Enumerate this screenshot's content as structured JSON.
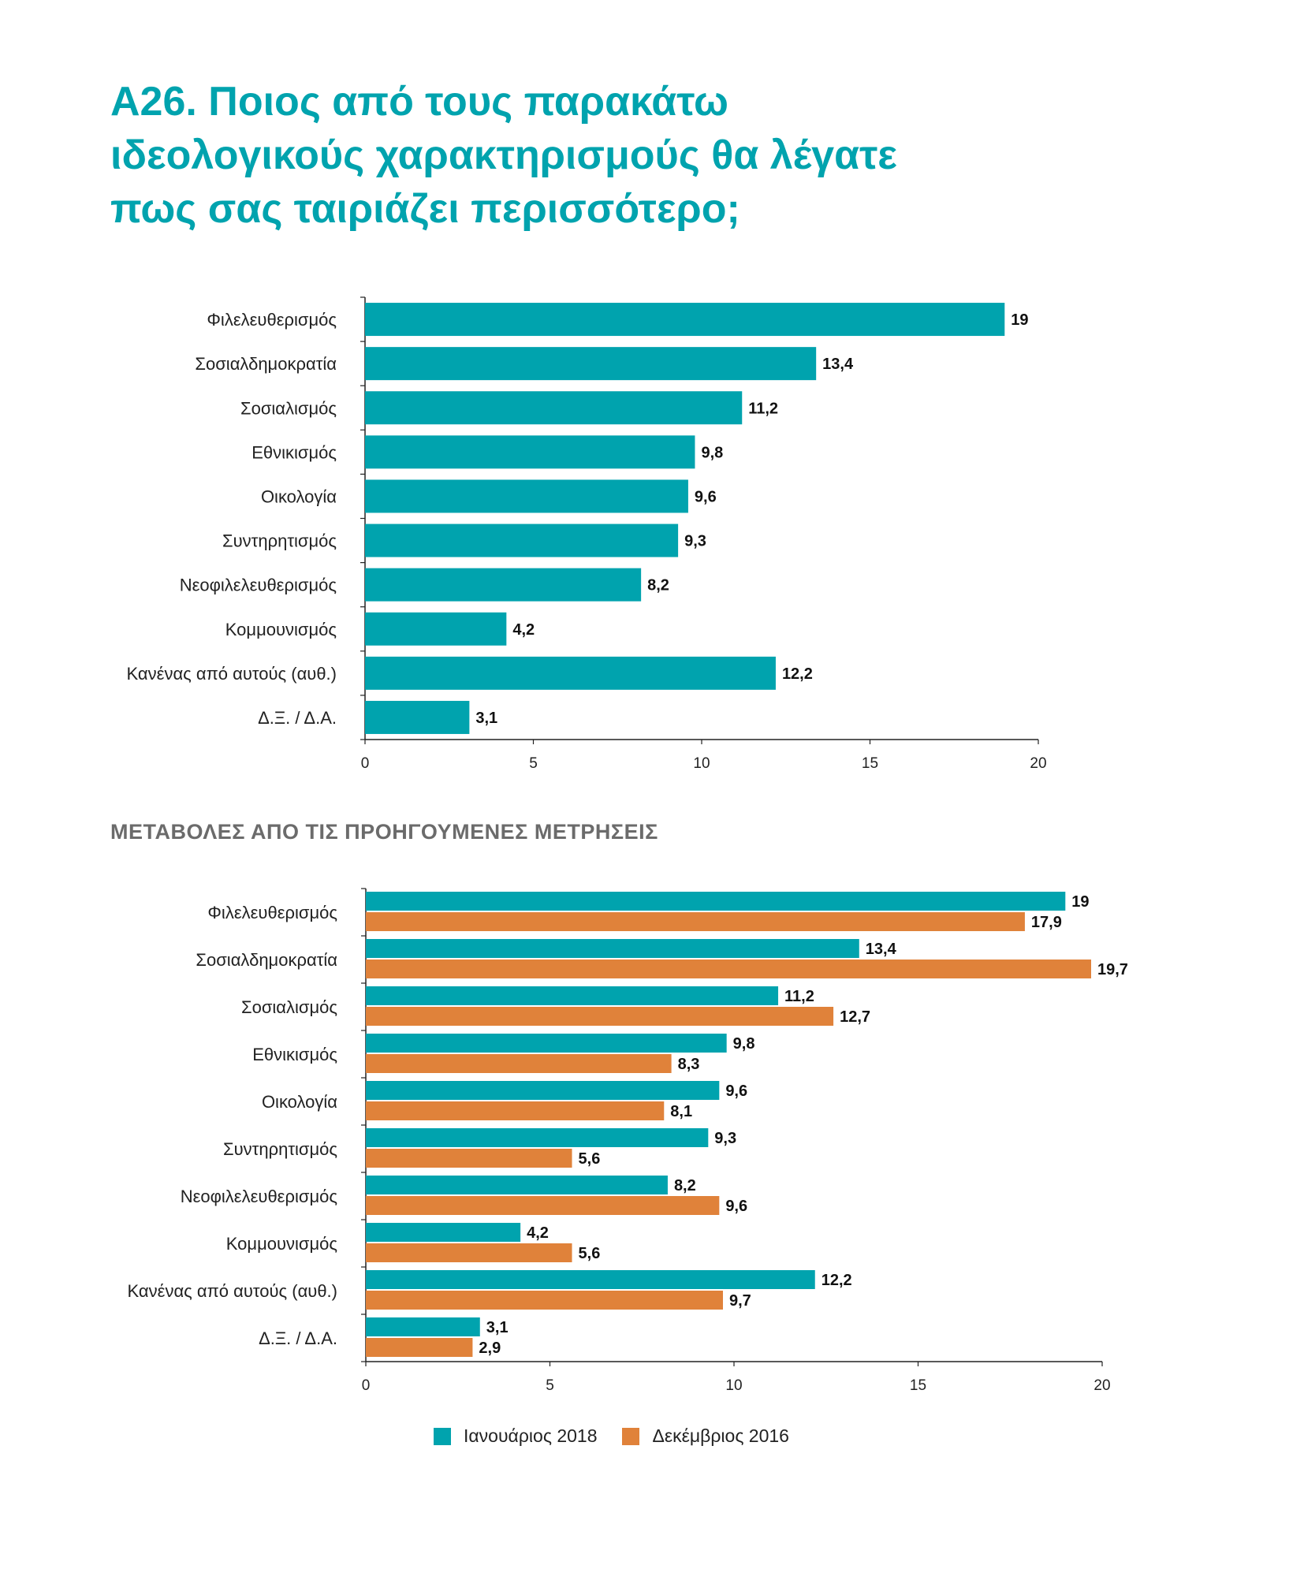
{
  "title_lines": [
    "Α26. Ποιος από τους παρακάτω",
    "ιδεολογικούς χαρακτηρισμούς θα λέγατε",
    "πως σας ταιριάζει περισσότερο;"
  ],
  "subtitle": "ΜΕΤΑΒΟΛΕΣ ΑΠΟ ΤΙΣ ΠΡΟΗΓΟΥΜΕΝΕΣ ΜΕΤΡΗΣΕΙΣ",
  "colors": {
    "teal": "#00A3AE",
    "orange": "#E0823A",
    "axis": "#222222"
  },
  "chart_data": [
    {
      "type": "bar",
      "orientation": "horizontal",
      "categories": [
        "Φιλελευθερισμός",
        "Σοσιαλδημοκρατία",
        "Σοσιαλισμός",
        "Εθνικισμός",
        "Οικολογία",
        "Συντηρητισμός",
        "Νεοφιλελευθερισμός",
        "Κομμουνισμός",
        "Κανένας από αυτούς (αυθ.)",
        "Δ.Ξ. / Δ.Α."
      ],
      "series": [
        {
          "values": [
            19,
            13.4,
            11.2,
            9.8,
            9.6,
            9.3,
            8.2,
            4.2,
            12.2,
            3.1
          ],
          "value_labels": [
            "19",
            "13,4",
            "11,2",
            "9,8",
            "9,6",
            "9,3",
            "8,2",
            "4,2",
            "12,2",
            "3,1"
          ]
        }
      ],
      "xlim": [
        0,
        20
      ],
      "xticks": [
        "0",
        "5",
        "10",
        "15",
        "20"
      ]
    },
    {
      "type": "bar",
      "orientation": "horizontal",
      "categories": [
        "Φιλελευθερισμός",
        "Σοσιαλδημοκρατία",
        "Σοσιαλισμός",
        "Εθνικισμός",
        "Οικολογία",
        "Συντηρητισμός",
        "Νεοφιλελευθερισμός",
        "Κομμουνισμός",
        "Κανένας από αυτούς (αυθ.)",
        "Δ.Ξ. / Δ.Α."
      ],
      "series": [
        {
          "name": "Ιανουάριος 2018",
          "values": [
            19,
            13.4,
            11.2,
            9.8,
            9.6,
            9.3,
            8.2,
            4.2,
            12.2,
            3.1
          ],
          "value_labels": [
            "19",
            "13,4",
            "11,2",
            "9,8",
            "9,6",
            "9,3",
            "8,2",
            "4,2",
            "12,2",
            "3,1"
          ]
        },
        {
          "name": "Δεκέμβριος 2016",
          "values": [
            17.9,
            19.7,
            12.7,
            8.3,
            8.1,
            5.6,
            9.6,
            5.6,
            9.7,
            2.9
          ],
          "value_labels": [
            "17,9",
            "19,7",
            "12,7",
            "8,3",
            "8,1",
            "5,6",
            "9,6",
            "5,6",
            "9,7",
            "2,9"
          ]
        }
      ],
      "xlim": [
        0,
        20
      ],
      "xticks": [
        "0",
        "5",
        "10",
        "15",
        "20"
      ],
      "legend_position": "bottom"
    }
  ]
}
